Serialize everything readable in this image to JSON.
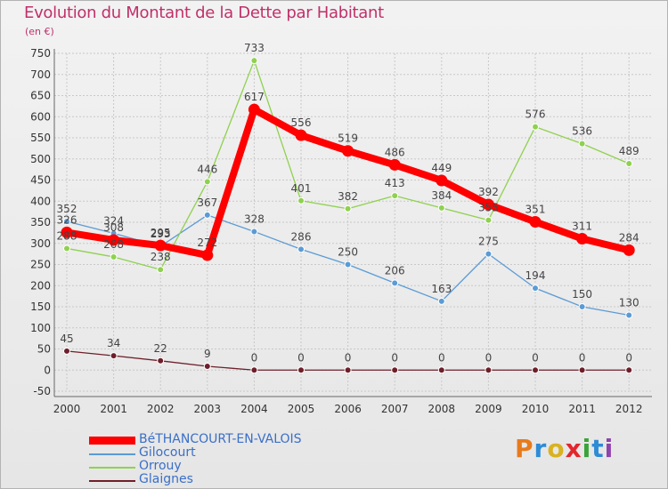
{
  "title": "Evolution du Montant de la Dette par Habitant",
  "unit": "(en €)",
  "logo": {
    "text": "Proxiti",
    "colors": [
      "#e87a1c",
      "#2e8bd6",
      "#d9b21f",
      "#e3262d",
      "#3aa33a",
      "#2e8bd6",
      "#8e44ad"
    ]
  },
  "chart_data": {
    "type": "line",
    "title": "Evolution du Montant de la Dette par Habitant",
    "ylabel": "(en €)",
    "xlabel": "",
    "x": [
      "2000",
      "2001",
      "2002",
      "2003",
      "2004",
      "2005",
      "2006",
      "2007",
      "2008",
      "2009",
      "2010",
      "2011",
      "2012"
    ],
    "ylim": [
      -50,
      750
    ],
    "yticks": [
      -50,
      0,
      50,
      100,
      150,
      200,
      250,
      300,
      350,
      400,
      450,
      500,
      550,
      600,
      650,
      700,
      750
    ],
    "grid": true,
    "legend_position": "bottom-left",
    "series": [
      {
        "name": "Gilocourt",
        "color": "#5b9bd5",
        "values": [
          352,
          324,
          293,
          367,
          328,
          286,
          250,
          206,
          163,
          275,
          194,
          150,
          130
        ]
      },
      {
        "name": "Orrouy",
        "color": "#8fd14f",
        "values": [
          288,
          268,
          238,
          446,
          733,
          401,
          382,
          413,
          384,
          355,
          576,
          536,
          489
        ]
      },
      {
        "name": "Glaignes",
        "color": "#6e1f2a",
        "values": [
          45,
          34,
          22,
          9,
          0,
          0,
          0,
          0,
          0,
          0,
          0,
          0,
          0
        ]
      },
      {
        "name": "BéTHANCOURT-EN-VALOIS",
        "color": "#ff0000",
        "values": [
          326,
          308,
          295,
          272,
          617,
          556,
          519,
          486,
          449,
          392,
          351,
          311,
          284
        ]
      }
    ],
    "legend_order": [
      3,
      0,
      1,
      2
    ]
  }
}
